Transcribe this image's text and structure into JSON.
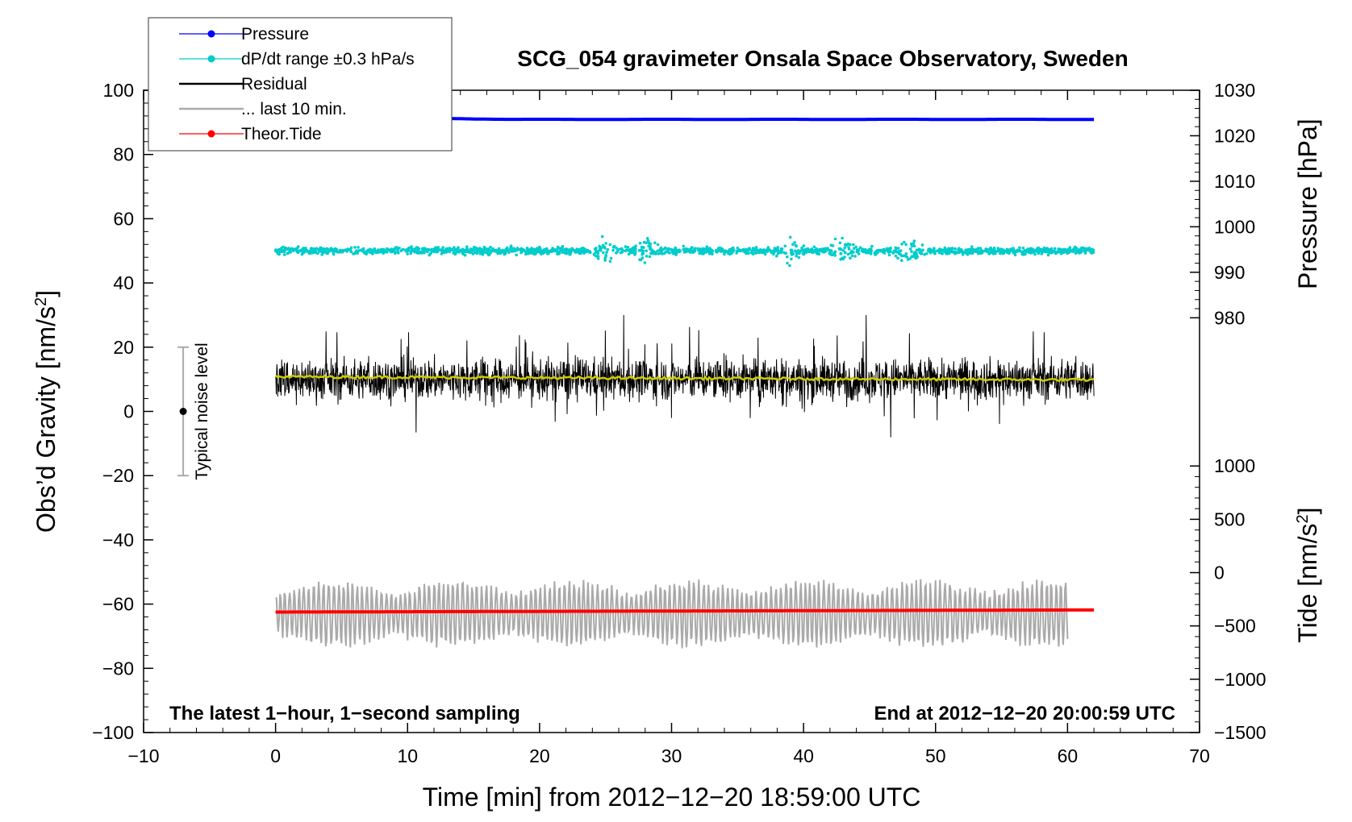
{
  "chart_data": {
    "type": "line",
    "title": "SCG_054 gravimeter Onsala Space Observatory, Sweden",
    "xlabel": "Time [min] from 2012−12−20 18:59:00 UTC",
    "ylabel_main": "Obs’d Gravity [nm/s",
    "ylabel_main_sup": "2",
    "ylabel_main_tail": "]",
    "ylabel_pressure": "Pressure [hPa]",
    "ylabel_tide": "Tide [nm/s",
    "ylabel_tide_sup": "2",
    "ylabel_tide_tail": "]",
    "xlim": [
      -10,
      70
    ],
    "ylim": [
      -100,
      100
    ],
    "pressure_lim": [
      970,
      1030
    ],
    "tide_lim": [
      -1500,
      1000
    ],
    "x_ticks": [
      -10,
      0,
      10,
      20,
      30,
      40,
      50,
      60,
      70
    ],
    "x_tick_labels": [
      "−10",
      "0",
      "10",
      "20",
      "30",
      "40",
      "50",
      "60",
      "70"
    ],
    "y_ticks": [
      -100,
      -80,
      -60,
      -40,
      -20,
      0,
      20,
      40,
      60,
      80,
      100
    ],
    "y_tick_labels": [
      "−100",
      "−80",
      "−60",
      "−40",
      "−20",
      "0",
      "20",
      "40",
      "60",
      "80",
      "100"
    ],
    "pressure_ticks": [
      980,
      990,
      1000,
      1010,
      1020,
      1030
    ],
    "pressure_tick_labels": [
      "980",
      "990",
      "1000",
      "1010",
      "1020",
      "1030"
    ],
    "tide_ticks": [
      -1500,
      -1000,
      -500,
      0,
      500,
      1000
    ],
    "tide_tick_labels": [
      "−1500",
      "−1000",
      "−500",
      "0",
      "500",
      "1000"
    ],
    "legend": [
      {
        "label": "Pressure",
        "color": "#0000ff",
        "marker": true
      },
      {
        "label": "dP/dt range ±0.3 hPa/s",
        "color": "#00cccc",
        "marker": true
      },
      {
        "label": "Residual",
        "color": "#000000",
        "marker": false
      },
      {
        "label": "... last 10 min.",
        "color": "#aaaaaa",
        "marker": false
      },
      {
        "label": "Theor.Tide",
        "color": "#ff0000",
        "marker": true
      }
    ],
    "annotations": {
      "left": "The latest 1−hour, 1−second sampling",
      "right": "End at 2012−12−20 20:00:59 UTC",
      "noise": "Typical noise level"
    },
    "noise_bar": {
      "x": -7,
      "center": 0,
      "low": -20,
      "high": 20
    },
    "series": [
      {
        "name": "Pressure",
        "color": "#0000ff",
        "axis": "pressure",
        "x_range": [
          0,
          62
        ],
        "level_start": 1024.3,
        "level_end": 1023.6
      },
      {
        "name": "dP/dt range",
        "color": "#00cccc",
        "axis": "main",
        "x_range": [
          0,
          62
        ],
        "center": 50,
        "spread": 2.5,
        "outlier_range": [
          41,
          63
        ]
      },
      {
        "name": "Residual",
        "color": "#000000",
        "axis": "main",
        "x_range": [
          0,
          62
        ],
        "center": 10,
        "range": [
          -12,
          30
        ]
      },
      {
        "name": "Residual smoothed",
        "color": "#cccc00",
        "axis": "main",
        "x_range": [
          0,
          62
        ],
        "level_start": 10.8,
        "level_end": 9.8
      },
      {
        "name": "... last 10 min.",
        "color": "#aaaaaa",
        "axis": "main",
        "x_range": [
          0,
          60
        ],
        "center": -63,
        "range": [
          -77,
          -45
        ]
      },
      {
        "name": "Theor.Tide",
        "color": "#ff0000",
        "axis": "tide",
        "x_range": [
          0,
          62
        ],
        "level_start": -370,
        "level_end": -350
      }
    ]
  }
}
